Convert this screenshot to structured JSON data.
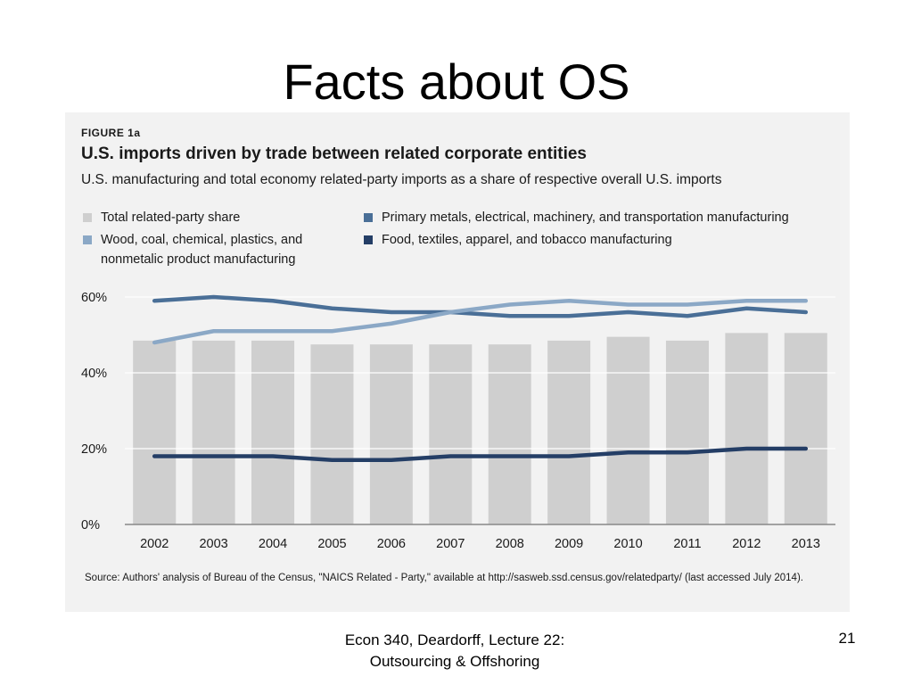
{
  "slide": {
    "title": "Facts about OS",
    "footer": "Econ 340, Deardorff, Lecture 22: Outsourcing & Offshoring",
    "page_number": "21"
  },
  "figure": {
    "label": "FIGURE 1a",
    "source": "Source: Authors' analysis of Bureau of the Census, \"NAICS Related - Party,\" available at http://sasweb.ssd.census.gov/relatedparty/ (last accessed July 2014)."
  },
  "colors": {
    "bars": "#cfcfcf",
    "primary_metals": "#4a6f97",
    "wood_coal": "#8ba8c6",
    "food_textiles": "#243e66",
    "grid": "#ffffff",
    "axis": "#888888"
  },
  "chart_data": {
    "type": "bar",
    "title": "U.S. imports driven by trade between related corporate entities",
    "subtitle": "U.S. manufacturing and total economy related-party imports as a share of respective overall U.S. imports",
    "xlabel": "",
    "ylabel": "",
    "ylim": [
      0,
      60
    ],
    "yticks": [
      0,
      20,
      40,
      60
    ],
    "ytick_labels": [
      "0%",
      "20%",
      "40%",
      "60%"
    ],
    "grid": true,
    "legend_position": "top",
    "categories": [
      "2002",
      "2003",
      "2004",
      "2005",
      "2006",
      "2007",
      "2008",
      "2009",
      "2010",
      "2011",
      "2012",
      "2013"
    ],
    "series": [
      {
        "name": "Total related-party share",
        "kind": "bar",
        "values": [
          48.5,
          48.5,
          48.5,
          47.5,
          47.5,
          47.5,
          47.5,
          48.5,
          49.5,
          48.5,
          50.5,
          50.5
        ]
      },
      {
        "name": "Primary metals, electrical, machinery, and transportation manufacturing",
        "kind": "line",
        "values": [
          59,
          60,
          59,
          57,
          56,
          56,
          55,
          55,
          56,
          55,
          57,
          56
        ]
      },
      {
        "name": "Wood, coal, chemical, plastics, and nonmetalic product manufacturing",
        "kind": "line",
        "values": [
          48,
          51,
          51,
          51,
          53,
          56,
          58,
          59,
          58,
          58,
          59,
          59
        ]
      },
      {
        "name": "Food, textiles, apparel, and tobacco manufacturing",
        "kind": "line",
        "values": [
          18,
          18,
          18,
          17,
          17,
          18,
          18,
          18,
          19,
          19,
          20,
          20
        ]
      }
    ]
  }
}
